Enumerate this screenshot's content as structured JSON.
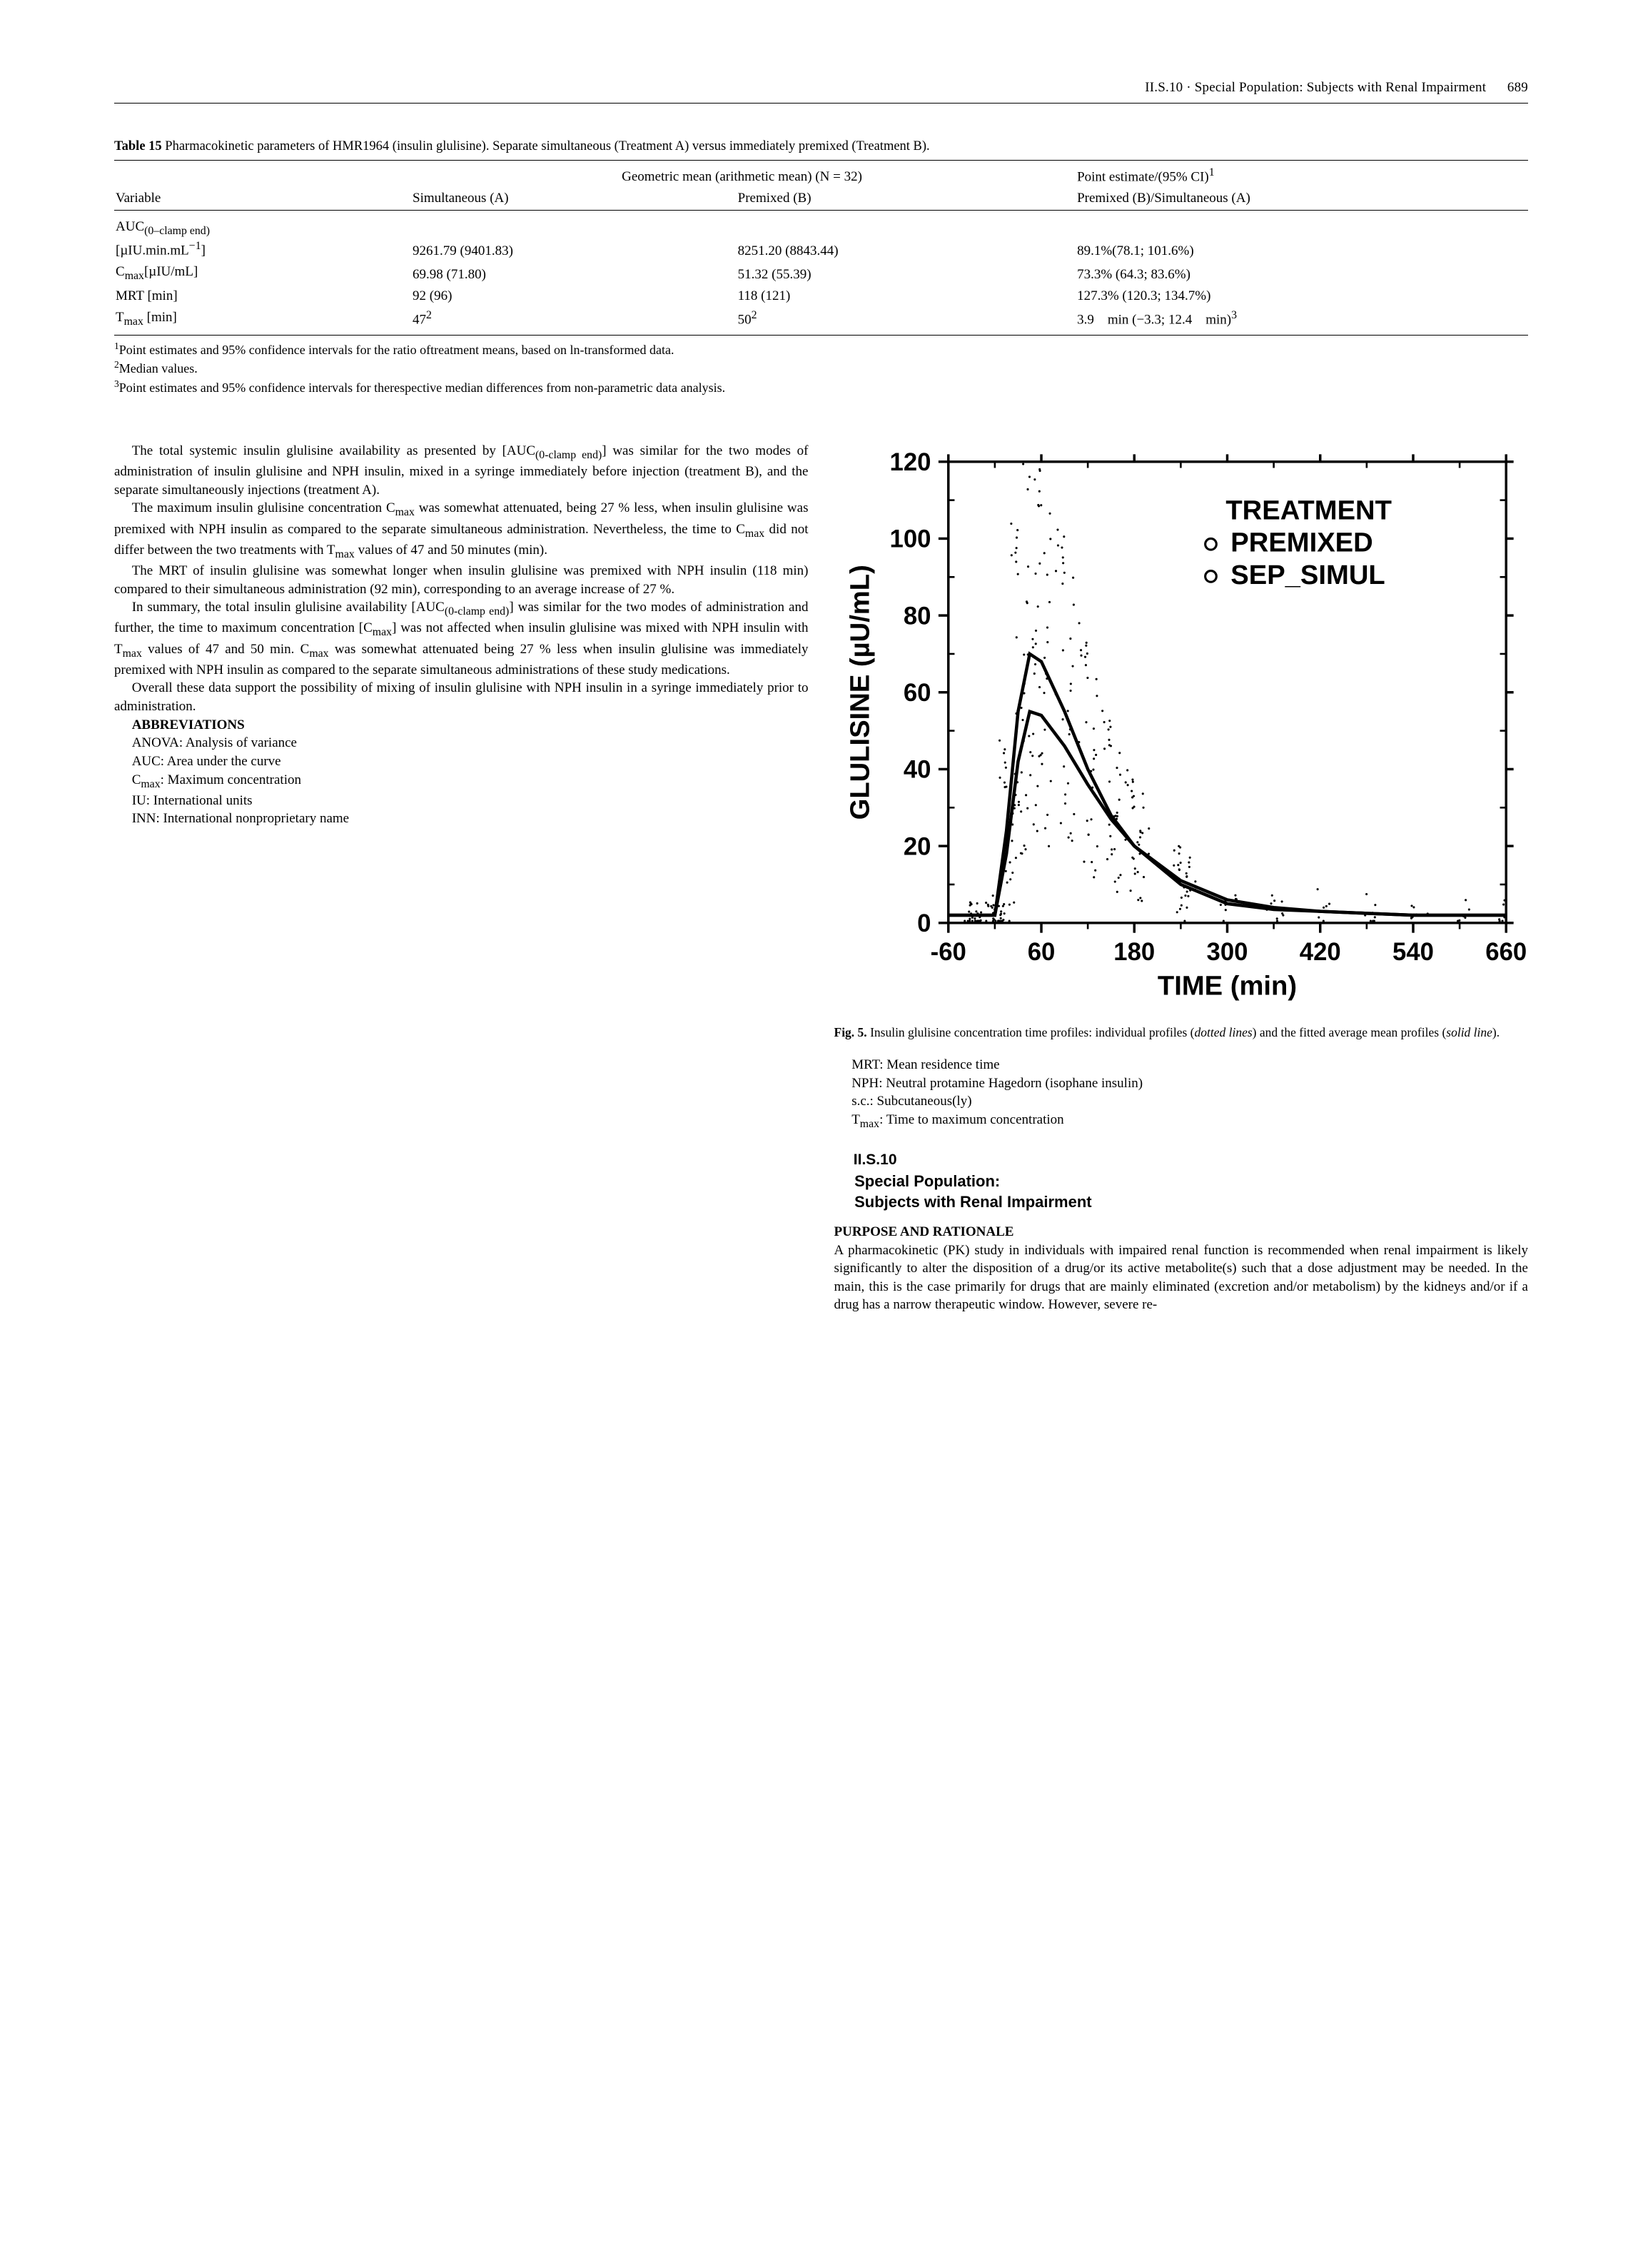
{
  "header": {
    "section": "II.S.10 · Special Population: Subjects with Renal Impairment",
    "page": "689"
  },
  "table15": {
    "caption_label": "Table 15",
    "caption_text": "Pharmacokinetic parameters of HMR1964 (insulin glulisine). Separate simultaneous (Treatment A) versus immediately premixed (Treatment B).",
    "header_span": "Geometric mean (arithmetic mean) (N = 32)",
    "col_variable": "Variable",
    "col_simul": "Simultaneous (A)",
    "col_premix": "Premixed (B)",
    "col_estimate_top": "Point estimate/(95% CI)",
    "col_estimate_bot": "Premixed (B)/Simultaneous (A)",
    "rows": [
      {
        "var_html": "AUC<sub>(0–clamp end)</sub><br>[µIU.min.mL<sup>−1</sup>]",
        "a": "9261.79 (9401.83)",
        "b": "8251.20 (8843.44)",
        "est": "89.1%(78.1; 101.6%)"
      },
      {
        "var_html": "C<sub>max</sub>[µIU/mL]",
        "a": "69.98 (71.80)",
        "b": "51.32 (55.39)",
        "est": "73.3% (64.3; 83.6%)"
      },
      {
        "var_html": "MRT [min]",
        "a": "92 (96)",
        "b": "118 (121)",
        "est": "127.3% (120.3; 134.7%)"
      },
      {
        "var_html": "T<sub>max</sub> [min]",
        "a": "47<sup>2</sup>",
        "b": "50<sup>2</sup>",
        "est": "3.9 min (−3.3; 12.4 min)<sup>3</sup>"
      }
    ],
    "footnotes": [
      "Point estimates and 95% confidence intervals for the ratio oftreatment means, based on ln-transformed data.",
      "Median values.",
      "Point estimates and 95% confidence intervals for therespective median differences from non-parametric data analysis."
    ]
  },
  "left": {
    "p1": "The total systemic insulin glulisine availability as presented by [AUC<sub>(0-clamp end)</sub>] was similar for the two modes of administration of insulin glulisine and NPH insulin, mixed in a syringe immediately before injection (treatment B), and the separate simultaneously injections (treatment A).",
    "p2": "The maximum insulin glulisine concentration C<sub>max</sub> was somewhat attenuated, being 27 % less, when insulin glulisine was premixed with NPH insulin as compared to the separate simultaneous administration. Nevertheless, the time to C<sub>max</sub> did not differ between the two treatments with T<sub>max</sub> values of 47 and 50 minutes (min).",
    "p3": "The MRT of insulin glulisine was somewhat longer when insulin glulisine was premixed with NPH insulin (118 min) compared to their simultaneous administration (92 min), corresponding to an average increase of 27 %.",
    "p4": "In summary, the total insulin glulisine availability [AUC<sub>(0-clamp end)</sub>] was similar for the two modes of administration and further, the time to maximum concentration [C<sub>max</sub>] was not affected when insulin glulisine was mixed with NPH insulin with T<sub>max</sub> values of 47 and 50 min. C<sub>max</sub> was somewhat attenuated being 27 % less when insulin glulisine was immediately premixed with NPH insulin as compared to the separate simultaneous administrations of these study medications.",
    "p5": "Overall these data support the possibility of mixing of insulin glulisine with NPH insulin in a syringe immediately prior to administration.",
    "abbr_head": "ABBREVIATIONS",
    "abbr": [
      "ANOVA: Analysis of variance",
      "AUC: Area under the curve",
      "C<sub>max</sub>: Maximum concentration",
      "IU: International units",
      "INN: International nonproprietary name"
    ]
  },
  "right": {
    "fig_caption_label": "Fig. 5.",
    "fig_caption_text": "Insulin glulisine concentration time profiles: individual profiles (<i>dotted lines</i>) and the fitted average mean profiles (<i>solid line</i>).",
    "abbr": [
      "MRT: Mean residence time",
      "NPH: Neutral protamine Hagedorn (isophane insulin)",
      "s.c.: Subcutaneous(ly)",
      "T<sub>max</sub>: Time to maximum concentration"
    ],
    "sec_num": "II.S.10",
    "sec_title1": "Special Population:",
    "sec_title2": "Subjects with Renal Impairment",
    "purpose_head": "PURPOSE AND RATIONALE",
    "purpose_text": "A pharmacokinetic (PK) study in individuals with impaired renal function is recommended when renal impairment is likely significantly to alter the disposition of a drug/or its active metabolite(s) such that a dose adjustment may be needed. In the main, this is the case primarily for drugs that are mainly eliminated (excretion and/or metabolism) by the kidneys and/or if a drug has a narrow therapeutic window. However, severe re-"
  },
  "chart": {
    "title": "TREATMENT",
    "legend": [
      "PREMIXED",
      "SEP_SIMUL"
    ],
    "xlabel": "TIME (min)",
    "ylabel": "GLULISINE (µU/mL)",
    "xlim": [
      -60,
      660
    ],
    "ylim": [
      0,
      120
    ],
    "xticks": [
      -60,
      60,
      180,
      300,
      420,
      540,
      660
    ],
    "yticks": [
      0,
      20,
      40,
      60,
      80,
      100,
      120
    ],
    "series": [
      {
        "name": "PREMIXED",
        "color": "#000000",
        "points": [
          [
            -60,
            2
          ],
          [
            -30,
            2
          ],
          [
            0,
            2
          ],
          [
            15,
            18
          ],
          [
            30,
            42
          ],
          [
            45,
            55
          ],
          [
            60,
            54
          ],
          [
            90,
            46
          ],
          [
            120,
            36
          ],
          [
            150,
            27
          ],
          [
            180,
            20
          ],
          [
            240,
            11
          ],
          [
            300,
            6
          ],
          [
            360,
            4
          ],
          [
            420,
            3
          ],
          [
            480,
            2.5
          ],
          [
            540,
            2
          ],
          [
            600,
            2
          ],
          [
            660,
            2
          ]
        ]
      },
      {
        "name": "SEP_SIMUL",
        "color": "#000000",
        "points": [
          [
            -60,
            2
          ],
          [
            -30,
            2
          ],
          [
            0,
            2
          ],
          [
            15,
            24
          ],
          [
            30,
            55
          ],
          [
            45,
            70
          ],
          [
            60,
            68
          ],
          [
            90,
            55
          ],
          [
            120,
            40
          ],
          [
            150,
            28
          ],
          [
            180,
            20
          ],
          [
            240,
            10
          ],
          [
            300,
            5
          ],
          [
            360,
            3.5
          ],
          [
            420,
            3
          ],
          [
            480,
            2.5
          ],
          [
            540,
            2
          ],
          [
            600,
            2
          ],
          [
            660,
            2
          ]
        ]
      }
    ],
    "dot_cloud_color": "#000000",
    "axis_color": "#000000",
    "tick_fontsize": 20,
    "label_fontsize": 22,
    "legend_fontsize": 22
  }
}
